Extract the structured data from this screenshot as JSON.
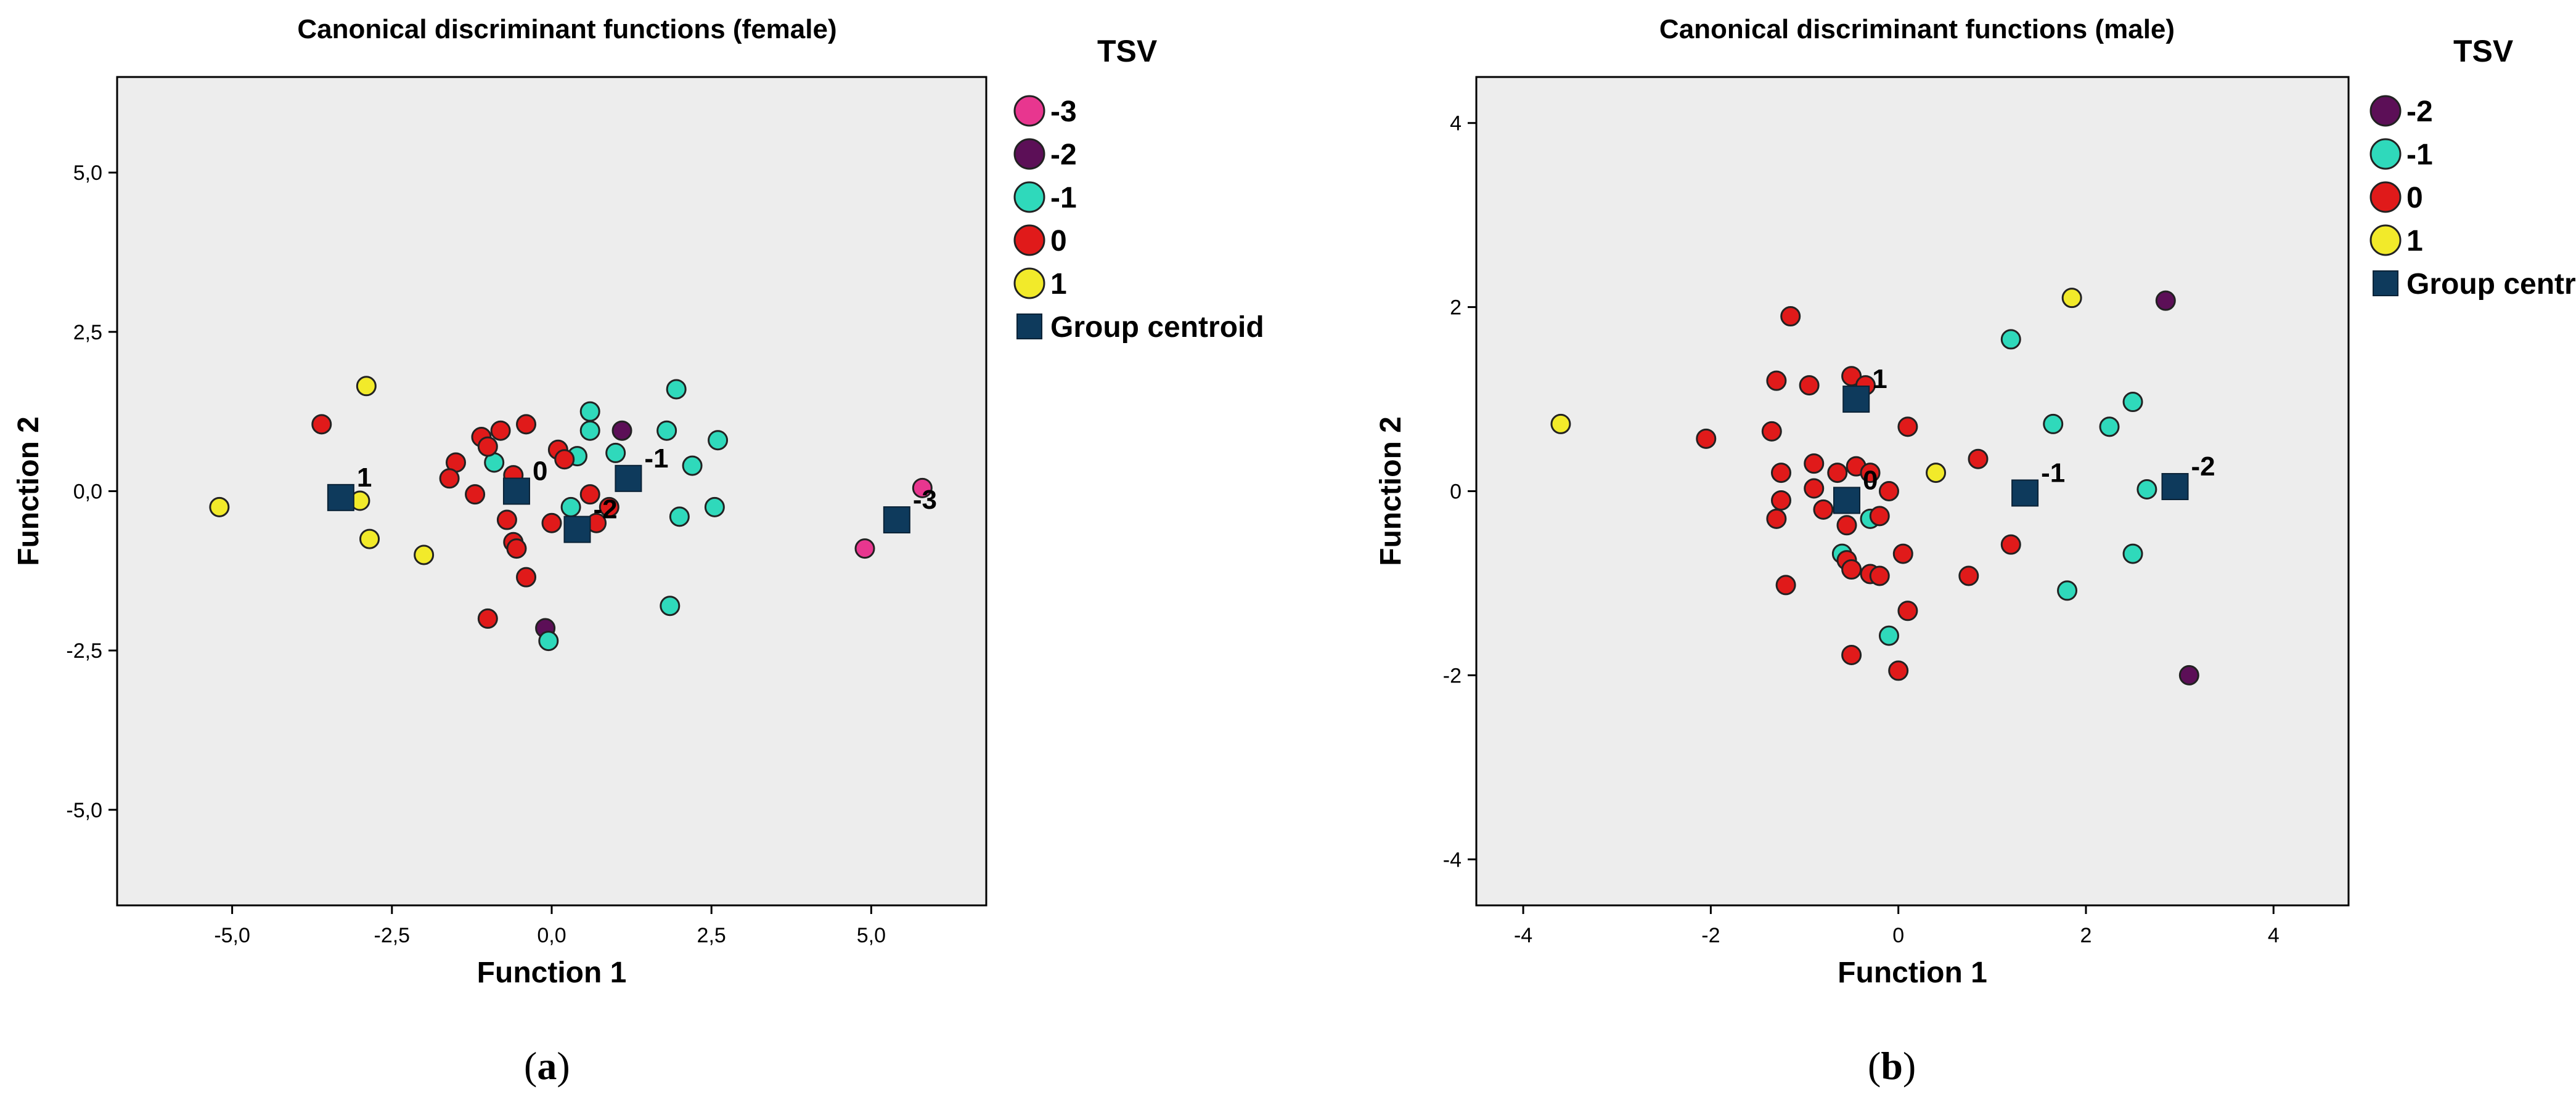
{
  "chart_data": [
    {
      "type": "scatter",
      "title": "Canonical discriminant functions (female)",
      "xlabel": "Function 1",
      "ylabel": "Function 2",
      "xlim": [
        -6.8,
        6.8
      ],
      "ylim": [
        -6.5,
        6.5
      ],
      "xticks": [
        -5,
        -2.5,
        0,
        2.5,
        5
      ],
      "xtick_labels": [
        "-5,0",
        "-2,5",
        "0,0",
        "2,5",
        "5,0"
      ],
      "yticks": [
        5,
        2.5,
        0,
        -2.5,
        -5
      ],
      "ytick_labels": [
        "5,0",
        "2,5",
        "0,0",
        "-2,5",
        "-5,0"
      ],
      "legend_title": "TSV",
      "panel_label": "a",
      "series": [
        {
          "name": "-3",
          "color": "#e8368f",
          "points": [
            [
              5.8,
              0.05
            ],
            [
              4.9,
              -0.9
            ]
          ]
        },
        {
          "name": "-2",
          "color": "#5c0f57",
          "points": [
            [
              1.1,
              0.95
            ],
            [
              -0.1,
              -2.15
            ]
          ]
        },
        {
          "name": "-1",
          "color": "#2fd9bb",
          "points": [
            [
              1.95,
              1.6
            ],
            [
              0.6,
              1.25
            ],
            [
              0.6,
              0.95
            ],
            [
              1.8,
              0.95
            ],
            [
              1.0,
              0.6
            ],
            [
              0.4,
              0.55
            ],
            [
              2.6,
              0.8
            ],
            [
              2.2,
              0.4
            ],
            [
              -0.9,
              0.45
            ],
            [
              0.3,
              -0.25
            ],
            [
              2.55,
              -0.25
            ],
            [
              2.0,
              -0.4
            ],
            [
              1.85,
              -1.8
            ],
            [
              -0.05,
              -2.35
            ]
          ]
        },
        {
          "name": "0",
          "color": "#e01a1a",
          "points": [
            [
              -3.6,
              1.05
            ],
            [
              -1.1,
              0.85
            ],
            [
              -0.8,
              0.95
            ],
            [
              -0.4,
              1.05
            ],
            [
              -1.0,
              0.7
            ],
            [
              -0.6,
              0.25
            ],
            [
              0.1,
              0.65
            ],
            [
              0.2,
              0.5
            ],
            [
              -1.5,
              0.45
            ],
            [
              -1.6,
              0.2
            ],
            [
              -1.2,
              -0.05
            ],
            [
              -0.7,
              -0.45
            ],
            [
              -0.6,
              -0.8
            ],
            [
              -0.55,
              -0.9
            ],
            [
              -0.4,
              -1.35
            ],
            [
              0.0,
              -0.5
            ],
            [
              0.6,
              -0.05
            ],
            [
              0.9,
              -0.25
            ],
            [
              0.7,
              -0.5
            ],
            [
              -1.0,
              -2.0
            ]
          ]
        },
        {
          "name": "1",
          "color": "#f2ea2a",
          "points": [
            [
              -5.2,
              -0.25
            ],
            [
              -3.0,
              -0.15
            ],
            [
              -2.9,
              1.65
            ],
            [
              -2.85,
              -0.75
            ],
            [
              -2.0,
              -1.0
            ]
          ]
        }
      ],
      "centroids": [
        {
          "label": "1",
          "x": -3.3,
          "y": -0.1
        },
        {
          "label": "0",
          "x": -0.55,
          "y": 0.0
        },
        {
          "label": "-1",
          "x": 1.2,
          "y": 0.2
        },
        {
          "label": "-2",
          "x": 0.4,
          "y": -0.6
        },
        {
          "label": "-3",
          "x": 5.4,
          "y": -0.45
        }
      ],
      "centroid_name": "Group centroid"
    },
    {
      "type": "scatter",
      "title": "Canonical discriminant functions (male)",
      "xlabel": "Function 1",
      "ylabel": "Function 2",
      "xlim": [
        -4.5,
        4.8
      ],
      "ylim": [
        -4.5,
        4.5
      ],
      "xticks": [
        -4,
        -2,
        0,
        2,
        4
      ],
      "xtick_labels": [
        "-4",
        "-2",
        "0",
        "2",
        "4"
      ],
      "yticks": [
        4,
        2,
        0,
        -2,
        -4
      ],
      "ytick_labels": [
        "4",
        "2",
        "0",
        "-2",
        "-4"
      ],
      "legend_title": "TSV",
      "panel_label": "b",
      "series": [
        {
          "name": "-2",
          "color": "#5c0f57",
          "points": [
            [
              2.85,
              2.07
            ],
            [
              3.1,
              -2.0
            ]
          ]
        },
        {
          "name": "-1",
          "color": "#2fd9bb",
          "points": [
            [
              1.2,
              1.65
            ],
            [
              1.65,
              0.73
            ],
            [
              2.25,
              0.7
            ],
            [
              2.5,
              0.97
            ],
            [
              2.65,
              0.02
            ],
            [
              2.5,
              -0.68
            ],
            [
              1.8,
              -1.08
            ],
            [
              -0.1,
              -1.57
            ],
            [
              -0.6,
              -0.68
            ],
            [
              -0.3,
              -0.3
            ]
          ]
        },
        {
          "name": "0",
          "color": "#e01a1a",
          "points": [
            [
              -1.15,
              1.9
            ],
            [
              -1.3,
              1.2
            ],
            [
              -0.95,
              1.15
            ],
            [
              -0.5,
              1.25
            ],
            [
              -0.35,
              1.15
            ],
            [
              -2.05,
              0.57
            ],
            [
              -1.35,
              0.65
            ],
            [
              -0.9,
              0.3
            ],
            [
              -0.65,
              0.2
            ],
            [
              -0.45,
              0.27
            ],
            [
              -0.3,
              0.2
            ],
            [
              -1.25,
              0.2
            ],
            [
              -0.9,
              0.03
            ],
            [
              -0.8,
              -0.2
            ],
            [
              -1.25,
              -0.1
            ],
            [
              -1.3,
              -0.3
            ],
            [
              -0.55,
              -0.37
            ],
            [
              -0.2,
              -0.27
            ],
            [
              -0.1,
              0.0
            ],
            [
              0.1,
              0.7
            ],
            [
              0.85,
              0.35
            ],
            [
              -0.55,
              -0.75
            ],
            [
              -0.5,
              -0.85
            ],
            [
              -0.3,
              -0.9
            ],
            [
              -0.2,
              -0.92
            ],
            [
              -1.2,
              -1.02
            ],
            [
              0.05,
              -0.68
            ],
            [
              0.1,
              -1.3
            ],
            [
              0.75,
              -0.92
            ],
            [
              1.2,
              -0.58
            ],
            [
              -0.5,
              -1.78
            ],
            [
              0.0,
              -1.95
            ]
          ]
        },
        {
          "name": "1",
          "color": "#f2ea2a",
          "points": [
            [
              -3.6,
              0.73
            ],
            [
              1.85,
              2.1
            ],
            [
              0.4,
              0.2
            ]
          ]
        }
      ],
      "centroids": [
        {
          "label": "1",
          "x": -0.45,
          "y": 1.0
        },
        {
          "label": "0",
          "x": -0.55,
          "y": -0.1
        },
        {
          "label": "-1",
          "x": 1.35,
          "y": -0.02
        },
        {
          "label": "-2",
          "x": 2.95,
          "y": 0.05
        }
      ],
      "centroid_name": "Group centroid"
    }
  ]
}
